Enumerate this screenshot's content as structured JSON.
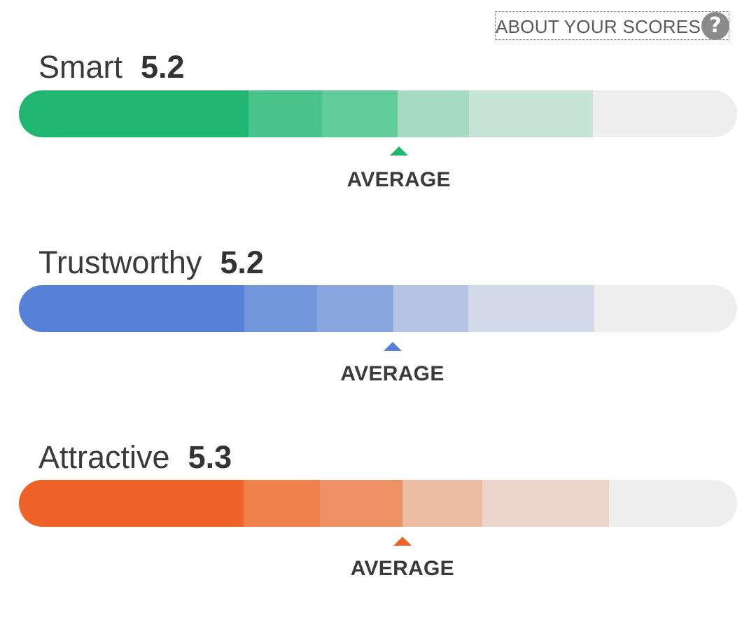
{
  "header": {
    "about_label": "ABOUT YOUR SCORES",
    "help_icon": "question-circle-icon",
    "help_glyph": "?"
  },
  "scores": [
    {
      "name": "Smart",
      "value": "5.2",
      "average_label": "AVERAGE",
      "colors": [
        "#21b66f",
        "#48c389",
        "#62cb9a",
        "#a5dcc1",
        "#c6e4d5",
        "#eeeeee"
      ],
      "bands": [
        0.32,
        0.102,
        0.105,
        0.1,
        0.172,
        0.201
      ],
      "average_position": 0.529
    },
    {
      "name": "Trustworthy",
      "value": "5.2",
      "average_label": "AVERAGE",
      "colors": [
        "#5681d7",
        "#7397db",
        "#88a5dd",
        "#b5c4e4",
        "#d1d9ea",
        "#eeeeee"
      ],
      "bands": [
        0.314,
        0.101,
        0.106,
        0.105,
        0.175,
        0.199
      ],
      "average_position": 0.52
    },
    {
      "name": "Attractive",
      "value": "5.3",
      "average_label": "AVERAGE",
      "colors": [
        "#ef6329",
        "#f0804c",
        "#ee9266",
        "#ecbba3",
        "#ecd4c8",
        "#eeeeee"
      ],
      "bands": [
        0.313,
        0.106,
        0.115,
        0.111,
        0.177,
        0.178
      ],
      "average_position": 0.534
    }
  ]
}
